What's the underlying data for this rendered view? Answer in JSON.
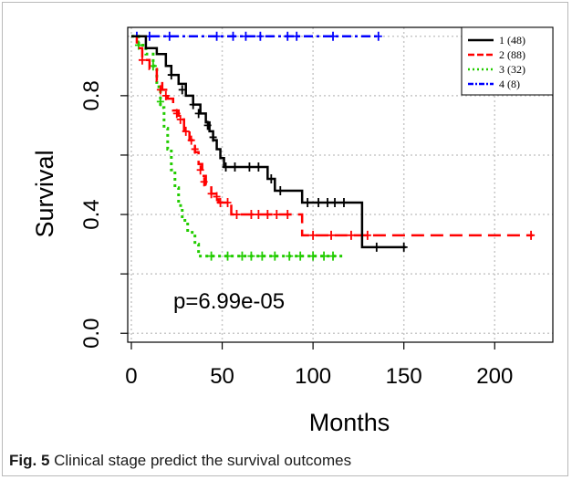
{
  "chart_data": {
    "type": "line",
    "title": "",
    "xlabel": "Months",
    "ylabel": "Survival",
    "xlim": [
      -2,
      232
    ],
    "ylim": [
      -0.03,
      1.03
    ],
    "x_ticks": [
      "0",
      "50",
      "100",
      "150",
      "200"
    ],
    "y_ticks": [
      "0.0",
      "0.4",
      "0.8"
    ],
    "grid": true,
    "legend_position": "top-right",
    "annotation": "p=6.99e-05",
    "colors": {
      "s1": "#000000",
      "s2": "#ff0000",
      "s3": "#22cc00",
      "s4": "#0000ff",
      "grid": "#c8c8c8"
    },
    "series": [
      {
        "name": "1 (48)",
        "steps": [
          [
            0,
            1.0
          ],
          [
            8,
            0.96
          ],
          [
            14,
            0.94
          ],
          [
            19,
            0.9
          ],
          [
            22,
            0.87
          ],
          [
            26,
            0.84
          ],
          [
            30,
            0.8
          ],
          [
            34,
            0.77
          ],
          [
            38,
            0.74
          ],
          [
            41,
            0.71
          ],
          [
            43,
            0.68
          ],
          [
            45,
            0.65
          ],
          [
            47,
            0.62
          ],
          [
            49,
            0.59
          ],
          [
            51,
            0.56
          ],
          [
            75,
            0.52
          ],
          [
            79,
            0.48
          ],
          [
            94,
            0.44
          ],
          [
            127,
            0.29
          ],
          [
            151,
            0.29
          ]
        ],
        "censored": [
          [
            22,
            0.87
          ],
          [
            28,
            0.82
          ],
          [
            34,
            0.77
          ],
          [
            37,
            0.74
          ],
          [
            42,
            0.7
          ],
          [
            45,
            0.66
          ],
          [
            52,
            0.56
          ],
          [
            57,
            0.56
          ],
          [
            65,
            0.56
          ],
          [
            70,
            0.56
          ],
          [
            77,
            0.52
          ],
          [
            82,
            0.48
          ],
          [
            97,
            0.44
          ],
          [
            103,
            0.44
          ],
          [
            108,
            0.44
          ],
          [
            112,
            0.44
          ],
          [
            117,
            0.44
          ],
          [
            135,
            0.29
          ],
          [
            150,
            0.29
          ]
        ]
      },
      {
        "name": "2 (88)",
        "steps": [
          [
            0,
            1.0
          ],
          [
            3,
            0.96
          ],
          [
            6,
            0.92
          ],
          [
            10,
            0.89
          ],
          [
            14,
            0.85
          ],
          [
            17,
            0.82
          ],
          [
            20,
            0.79
          ],
          [
            23,
            0.75
          ],
          [
            26,
            0.72
          ],
          [
            29,
            0.68
          ],
          [
            32,
            0.65
          ],
          [
            35,
            0.61
          ],
          [
            37,
            0.57
          ],
          [
            39,
            0.53
          ],
          [
            41,
            0.5
          ],
          [
            44,
            0.47
          ],
          [
            48,
            0.44
          ],
          [
            55,
            0.4
          ],
          [
            94,
            0.33
          ],
          [
            221,
            0.33
          ]
        ],
        "censored": [
          [
            6,
            0.92
          ],
          [
            16,
            0.82
          ],
          [
            19,
            0.8
          ],
          [
            25,
            0.74
          ],
          [
            27,
            0.72
          ],
          [
            30,
            0.68
          ],
          [
            33,
            0.65
          ],
          [
            35,
            0.62
          ],
          [
            38,
            0.55
          ],
          [
            40,
            0.51
          ],
          [
            44,
            0.47
          ],
          [
            47,
            0.46
          ],
          [
            49,
            0.44
          ],
          [
            53,
            0.44
          ],
          [
            58,
            0.4
          ],
          [
            66,
            0.4
          ],
          [
            70,
            0.4
          ],
          [
            75,
            0.4
          ],
          [
            80,
            0.4
          ],
          [
            86,
            0.4
          ],
          [
            100,
            0.33
          ],
          [
            110,
            0.33
          ],
          [
            121,
            0.33
          ],
          [
            130,
            0.33
          ],
          [
            220,
            0.33
          ]
        ]
      },
      {
        "name": "3 (32)",
        "steps": [
          [
            0,
            1.0
          ],
          [
            4,
            0.97
          ],
          [
            8,
            0.94
          ],
          [
            12,
            0.9
          ],
          [
            14,
            0.83
          ],
          [
            16,
            0.76
          ],
          [
            18,
            0.69
          ],
          [
            20,
            0.62
          ],
          [
            22,
            0.55
          ],
          [
            24,
            0.49
          ],
          [
            26,
            0.43
          ],
          [
            28,
            0.38
          ],
          [
            31,
            0.34
          ],
          [
            35,
            0.3
          ],
          [
            37,
            0.26
          ],
          [
            118,
            0.26
          ]
        ],
        "censored": [
          [
            4,
            0.97
          ],
          [
            12,
            0.9
          ],
          [
            16,
            0.78
          ],
          [
            44,
            0.26
          ],
          [
            53,
            0.26
          ],
          [
            61,
            0.26
          ],
          [
            66,
            0.26
          ],
          [
            72,
            0.26
          ],
          [
            79,
            0.26
          ],
          [
            87,
            0.26
          ],
          [
            93,
            0.26
          ],
          [
            100,
            0.26
          ],
          [
            106,
            0.26
          ],
          [
            111,
            0.26
          ]
        ]
      },
      {
        "name": "4 (8)",
        "steps": [
          [
            0,
            1.0
          ],
          [
            137,
            1.0
          ]
        ],
        "censored": [
          [
            3,
            1.0
          ],
          [
            10,
            1.0
          ],
          [
            21,
            1.0
          ],
          [
            47,
            1.0
          ],
          [
            56,
            1.0
          ],
          [
            63,
            1.0
          ],
          [
            71,
            1.0
          ],
          [
            86,
            1.0
          ],
          [
            91,
            1.0
          ],
          [
            111,
            1.0
          ],
          [
            136,
            1.0
          ]
        ]
      }
    ]
  },
  "caption": {
    "label": "Fig. 5",
    "text": " Clinical stage predict the survival outcomes"
  }
}
